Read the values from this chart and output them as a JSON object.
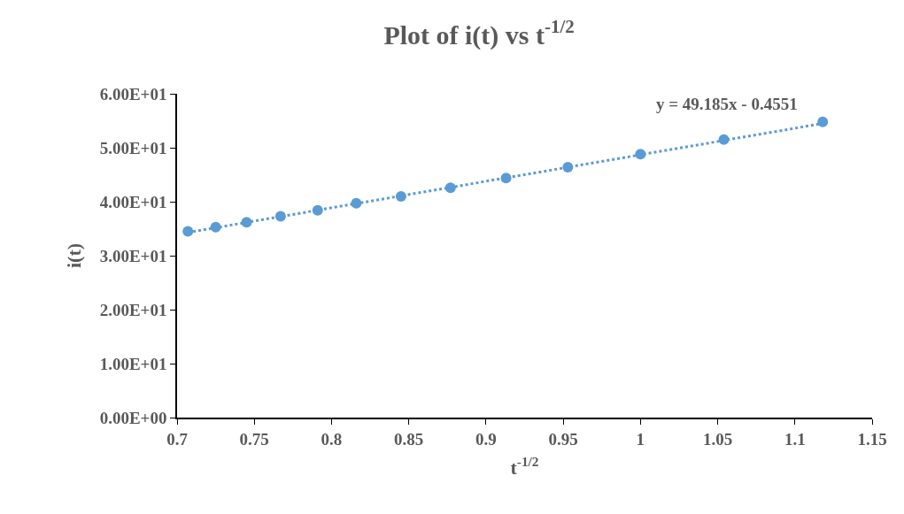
{
  "chart_data": {
    "type": "scatter",
    "title": "Plot of i(t) vs t$^{-1/2}$",
    "xlabel": "t$^{-1/2}$",
    "ylabel": "i(t)",
    "xlim": [
      0.7,
      1.15
    ],
    "xticks": [
      0.7,
      0.75,
      0.8,
      0.85,
      0.9,
      0.95,
      1,
      1.05,
      1.1,
      1.15
    ],
    "ylim": [
      0,
      60
    ],
    "yticks": [
      {
        "value": 0,
        "label": "0.00E+00"
      },
      {
        "value": 10,
        "label": "1.00E+01"
      },
      {
        "value": 20,
        "label": "2.00E+01"
      },
      {
        "value": 30,
        "label": "3.00E+01"
      },
      {
        "value": 40,
        "label": "4.00E+01"
      },
      {
        "value": 50,
        "label": "5.00E+01"
      },
      {
        "value": 60,
        "label": "6.00E+01"
      }
    ],
    "series": [
      {
        "color": "#5b9bd5",
        "marker": "circle",
        "x": [
          0.707,
          0.725,
          0.745,
          0.767,
          0.791,
          0.816,
          0.845,
          0.877,
          0.913,
          0.953,
          1.0,
          1.054,
          1.118
        ],
        "values": [
          34.5,
          35.3,
          36.2,
          37.3,
          38.4,
          39.7,
          41.0,
          42.6,
          44.4,
          46.4,
          48.8,
          51.5,
          54.8
        ]
      },
      {
        "type": "line",
        "color": "#5b9bd5",
        "marker": "none",
        "line_style": "dotted",
        "x": [
          0.707,
          1.118
        ],
        "values": [
          34.3,
          54.5
        ]
      }
    ],
    "annotations": [
      "y = 49.185x - 0.4551"
    ]
  }
}
